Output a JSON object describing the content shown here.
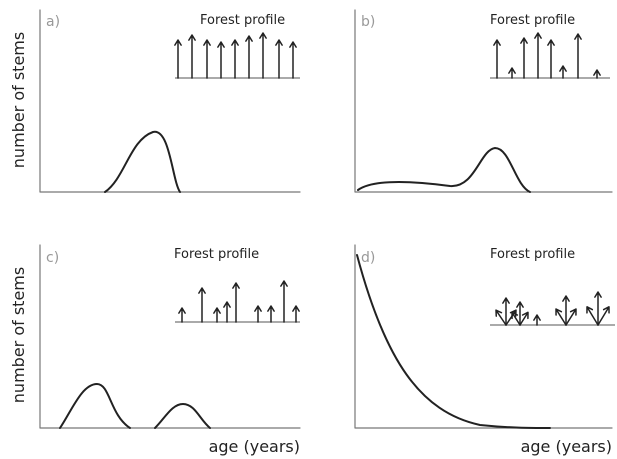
{
  "panels": [
    {
      "label": "a)",
      "profile_title": "Forest profile"
    },
    {
      "label": "b)",
      "profile_title": "Forest profile"
    },
    {
      "label": "c)",
      "profile_title": "Forest profile"
    },
    {
      "label": "d)",
      "profile_title": "Forest profile"
    }
  ],
  "axis_labels": {
    "y": [
      "number of stems",
      "number of stems"
    ],
    "x": [
      "age (years)",
      "age (years)"
    ]
  }
}
